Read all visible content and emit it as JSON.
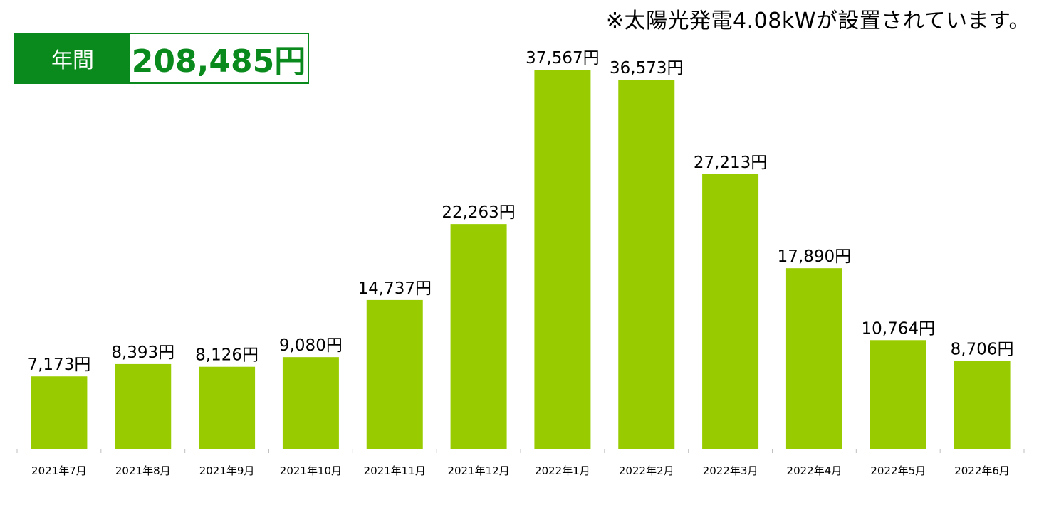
{
  "note": "※太陽光発電4.08kWが設置されています。",
  "annual_total": {
    "label": "年間",
    "value": "208,485円"
  },
  "colors": {
    "bar": "#99cc00",
    "accent_green": "#0a8a1d",
    "axis": "#bfbfbf"
  },
  "chart_data": {
    "type": "bar",
    "categories": [
      "2021年7月",
      "2021年8月",
      "2021年9月",
      "2021年10月",
      "2021年11月",
      "2021年12月",
      "2022年1月",
      "2022年2月",
      "2022年3月",
      "2022年4月",
      "2022年5月",
      "2022年6月"
    ],
    "values": [
      7173,
      8393,
      8126,
      9080,
      14737,
      22263,
      37567,
      36573,
      27213,
      17890,
      10764,
      8706
    ],
    "data_labels": [
      "7,173円",
      "8,393円",
      "8,126円",
      "9,080円",
      "14,737円",
      "22,263円",
      "37,567円",
      "36,573円",
      "27,213円",
      "17,890円",
      "10,764円",
      "8,706円"
    ],
    "ylim": [
      0,
      37567
    ],
    "grid": false
  }
}
